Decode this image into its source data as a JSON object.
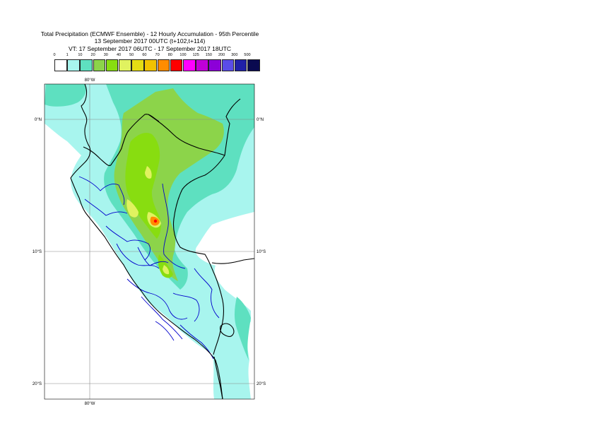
{
  "title": {
    "line1": "Total Precipitation (ECMWF Ensemble) - 12 Hourly Accumulation - 95th Percentile",
    "line2": "13 September 2017 00UTC (t+102,t+114)",
    "line3": "VT: 17 September 2017 06UTC - 17 September 2017 18UTC"
  },
  "legend": {
    "thresholds": [
      "0",
      "1",
      "10",
      "20",
      "30",
      "40",
      "50",
      "60",
      "70",
      "80",
      "100",
      "125",
      "150",
      "200",
      "300",
      "500"
    ],
    "colors": [
      "#ffffff",
      "#a8f5ee",
      "#5ee0c0",
      "#8cd44a",
      "#88dd10",
      "#e0f260",
      "#e4dc14",
      "#f2c200",
      "#ff8c00",
      "#ff0000",
      "#ff00ff",
      "#c000d8",
      "#8c00d8",
      "#5a4ce8",
      "#2020a8",
      "#0a0a50"
    ]
  },
  "map": {
    "lon_labels": [
      "80°W",
      "80°W"
    ],
    "lat_labels": {
      "left": [
        "0°N",
        "10°S",
        "20°S"
      ],
      "right": [
        "0°N",
        "10°S",
        "20°S"
      ]
    },
    "colors": {
      "light": "#a8f5ee",
      "medium": "#5ee0c0",
      "green": "#8cd44a",
      "bright_green": "#88dd10",
      "yellow": "#e0f260",
      "orange": "#ff8c00",
      "red": "#ff0000",
      "country_border": "#000000",
      "region_border": "#0000cc"
    }
  }
}
